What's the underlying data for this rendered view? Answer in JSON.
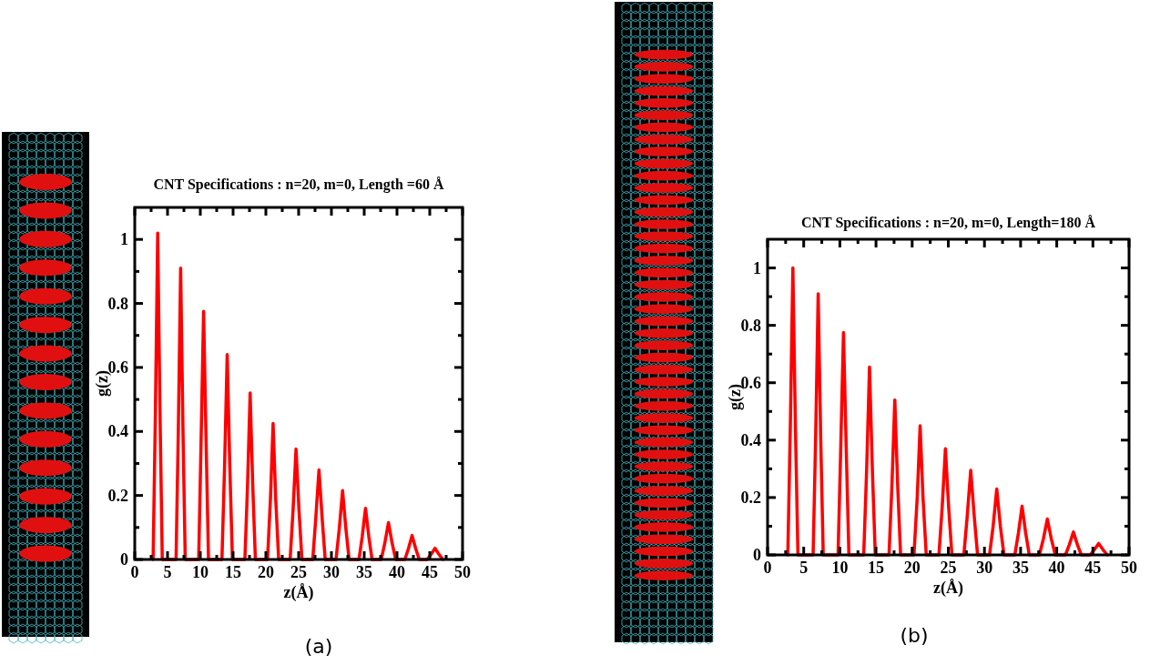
{
  "chart_data": [
    {
      "type": "line",
      "title": "CNT Specifications : n=20, m=0, Length =60 Å",
      "xlabel": "z(Å)",
      "ylabel": "g(z)",
      "annotations": [
        "(a)"
      ],
      "x": [
        2.8,
        3.15,
        3.5,
        3.85,
        4.2,
        6.3,
        6.65,
        7.0,
        7.35,
        7.7,
        9.75,
        10.1,
        10.5,
        10.9,
        11.25,
        13.3,
        13.7,
        14.1,
        14.5,
        14.9,
        16.8,
        17.2,
        17.6,
        18.0,
        18.4,
        20.25,
        20.7,
        21.1,
        21.5,
        21.95,
        23.7,
        24.15,
        24.6,
        25.05,
        25.5,
        27.15,
        27.6,
        28.1,
        28.6,
        29.05,
        30.7,
        31.2,
        31.7,
        32.2,
        32.7,
        34.2,
        34.7,
        35.2,
        35.7,
        36.2,
        37.6,
        38.15,
        38.7,
        39.25,
        39.8,
        41.2,
        41.75,
        42.3,
        42.85,
        43.4,
        44.6,
        45.2,
        45.8,
        46.4,
        47.0
      ],
      "series": [
        {
          "color": "#ff0000",
          "values": [
            0,
            0.46,
            1.02,
            0.46,
            0,
            0,
            0.41,
            0.91,
            0.41,
            0,
            0,
            0.35,
            0.775,
            0.35,
            0,
            0,
            0.29,
            0.64,
            0.29,
            0,
            0,
            0.23,
            0.52,
            0.23,
            0,
            0,
            0.19,
            0.425,
            0.19,
            0,
            0,
            0.155,
            0.345,
            0.155,
            0,
            0,
            0.125,
            0.28,
            0.125,
            0,
            0,
            0.097,
            0.215,
            0.097,
            0,
            0,
            0.072,
            0.16,
            0.072,
            0,
            0,
            0.052,
            0.115,
            0.052,
            0,
            0,
            0.034,
            0.075,
            0.034,
            0,
            0,
            0.016,
            0.035,
            0.016,
            0
          ]
        }
      ],
      "xlim": [
        0,
        50
      ],
      "xticks": [
        0,
        {
          "value": 2.5,
          "label": null
        },
        5,
        {
          "value": 7.5,
          "label": null
        },
        10,
        {
          "value": 12.5,
          "label": null
        },
        15,
        {
          "value": 17.5,
          "label": null
        },
        20,
        {
          "value": 22.5,
          "label": null
        },
        25,
        {
          "value": 27.5,
          "label": null
        },
        30,
        {
          "value": 32.5,
          "label": null
        },
        35,
        {
          "value": 37.5,
          "label": null
        },
        40,
        {
          "value": 42.5,
          "label": null
        },
        45,
        {
          "value": 47.5,
          "label": null
        },
        50
      ],
      "ylim": [
        0,
        1.1
      ],
      "yticks": [
        0,
        {
          "value": 0.1,
          "label": null
        },
        0.2,
        {
          "value": 0.3,
          "label": null
        },
        0.4,
        {
          "value": 0.5,
          "label": null
        },
        0.6,
        {
          "value": 0.7,
          "label": null
        },
        0.8,
        {
          "value": 0.9,
          "label": null
        },
        1
      ],
      "grid": false,
      "marker": "none",
      "line_style": "solid"
    },
    {
      "type": "line",
      "title": "CNT Specifications : n=20, m=0, Length=180 Å",
      "xlabel": "z(Å)",
      "ylabel": "g(z)",
      "annotations": [
        "(b)"
      ],
      "x": [
        2.8,
        3.15,
        3.5,
        3.85,
        4.2,
        6.3,
        6.65,
        7.0,
        7.35,
        7.7,
        9.75,
        10.1,
        10.5,
        10.9,
        11.25,
        13.3,
        13.7,
        14.1,
        14.5,
        14.9,
        16.8,
        17.2,
        17.6,
        18.0,
        18.4,
        20.25,
        20.7,
        21.1,
        21.5,
        21.95,
        23.7,
        24.15,
        24.6,
        25.05,
        25.5,
        27.15,
        27.6,
        28.1,
        28.6,
        29.05,
        30.7,
        31.2,
        31.7,
        32.2,
        32.7,
        34.2,
        34.7,
        35.2,
        35.7,
        36.2,
        37.6,
        38.15,
        38.7,
        39.25,
        39.8,
        41.2,
        41.75,
        42.3,
        42.85,
        43.4,
        44.6,
        45.2,
        45.8,
        46.4,
        47.0
      ],
      "series": [
        {
          "color": "#ff0000",
          "values": [
            0,
            0.45,
            1.0,
            0.45,
            0,
            0,
            0.41,
            0.91,
            0.41,
            0,
            0,
            0.35,
            0.775,
            0.35,
            0,
            0,
            0.295,
            0.655,
            0.295,
            0,
            0,
            0.24,
            0.54,
            0.24,
            0,
            0,
            0.2,
            0.45,
            0.2,
            0,
            0,
            0.165,
            0.37,
            0.165,
            0,
            0,
            0.13,
            0.295,
            0.13,
            0,
            0,
            0.1,
            0.23,
            0.1,
            0,
            0,
            0.077,
            0.17,
            0.077,
            0,
            0,
            0.056,
            0.125,
            0.056,
            0,
            0,
            0.036,
            0.08,
            0.036,
            0,
            0,
            0.018,
            0.04,
            0.018,
            0
          ]
        }
      ],
      "xlim": [
        0,
        50
      ],
      "xticks": [
        0,
        {
          "value": 2.5,
          "label": null
        },
        5,
        {
          "value": 7.5,
          "label": null
        },
        10,
        {
          "value": 12.5,
          "label": null
        },
        15,
        {
          "value": 17.5,
          "label": null
        },
        20,
        {
          "value": 22.5,
          "label": null
        },
        25,
        {
          "value": 27.5,
          "label": null
        },
        30,
        {
          "value": 32.5,
          "label": null
        },
        35,
        {
          "value": 37.5,
          "label": null
        },
        40,
        {
          "value": 42.5,
          "label": null
        },
        45,
        {
          "value": 47.5,
          "label": null
        },
        50
      ],
      "ylim": [
        0,
        1.1
      ],
      "yticks": [
        0,
        {
          "value": 0.1,
          "label": null
        },
        0.2,
        {
          "value": 0.3,
          "label": null
        },
        0.4,
        {
          "value": 0.5,
          "label": null
        },
        0.6,
        {
          "value": 0.7,
          "label": null
        },
        0.8,
        {
          "value": 0.9,
          "label": null
        },
        1
      ],
      "grid": false,
      "marker": "none",
      "line_style": "solid"
    }
  ]
}
